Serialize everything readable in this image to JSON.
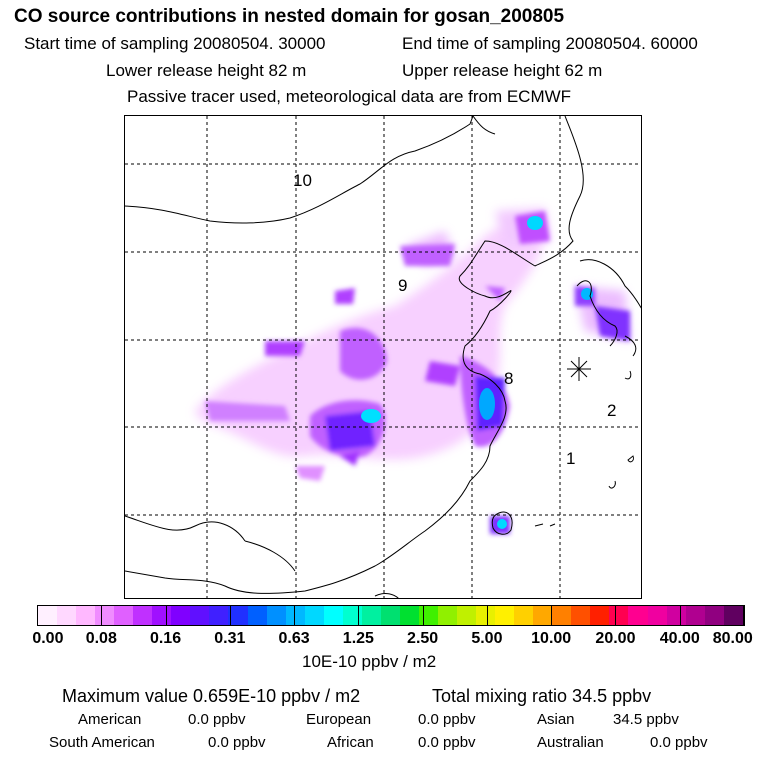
{
  "title": "CO  source contributions in nested domain for gosan_200805",
  "header": {
    "start_time": "Start time of sampling 20080504. 30000",
    "end_time": "End time of sampling 20080504. 60000",
    "lower_height": "Lower release height   82 m",
    "upper_height": "Upper release height   62 m",
    "tracer_note": "Passive tracer used, meteorological data are from ECMWF"
  },
  "map": {
    "region_labels": [
      "10",
      "9",
      "8",
      "2",
      "1"
    ],
    "receptor_marker": "asterisk"
  },
  "colorbar": {
    "colors": [
      "#fff0ff",
      "#ffd8ff",
      "#ffb8ff",
      "#f08cff",
      "#e060ff",
      "#c030ff",
      "#a010ff",
      "#8000ff",
      "#6010ff",
      "#4020ff",
      "#2030ff",
      "#0060ff",
      "#0090ff",
      "#00b8ff",
      "#00d8ff",
      "#00ffff",
      "#00ffd0",
      "#00f0a0",
      "#00e070",
      "#00e030",
      "#40f000",
      "#90f000",
      "#c0f000",
      "#e8f000",
      "#fff000",
      "#ffd000",
      "#ffa800",
      "#ff8000",
      "#ff5000",
      "#ff2000",
      "#ff0050",
      "#ff0090",
      "#f000a0",
      "#d000a0",
      "#b00090",
      "#900080",
      "#600060"
    ],
    "tick_labels": [
      "0.00",
      "0.08",
      "0.16",
      "0.31",
      "0.63",
      "1.25",
      "2.50",
      "5.00",
      "10.00",
      "20.00",
      "40.00",
      "80.00"
    ],
    "units": "10E-10 ppbv / m2"
  },
  "footer": {
    "max_value": "Maximum value  0.659E-10 ppbv / m2",
    "total_mixing": "Total mixing ratio      34.5 ppbv",
    "sources": [
      {
        "name": "American",
        "value": "0.0 ppbv"
      },
      {
        "name": "European",
        "value": "0.0 ppbv"
      },
      {
        "name": "Asian",
        "value": "34.5 ppbv"
      },
      {
        "name": "South American",
        "value": "0.0 ppbv"
      },
      {
        "name": "African",
        "value": "0.0 ppbv"
      },
      {
        "name": "Australian",
        "value": "0.0 ppbv"
      }
    ]
  }
}
